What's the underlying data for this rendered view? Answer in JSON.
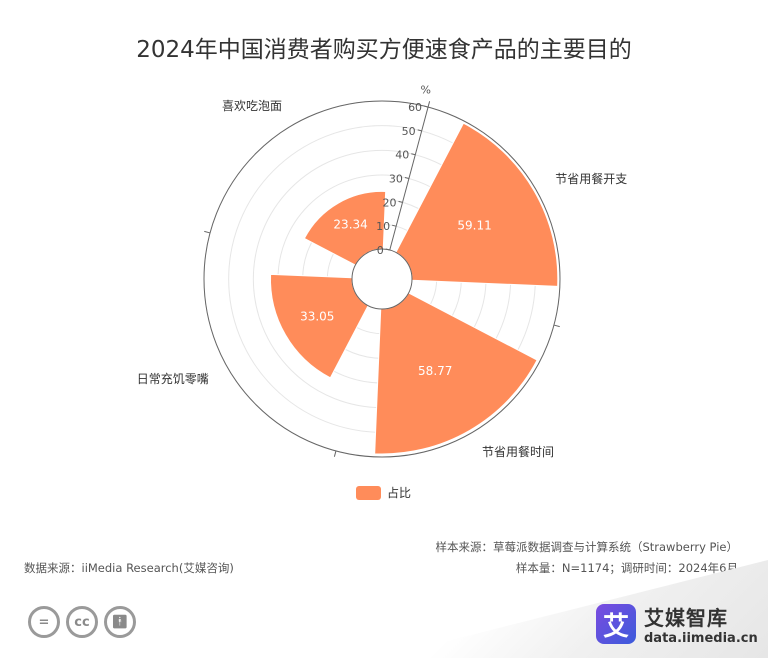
{
  "title": "2024年中国消费者购买方便速食产品的主要目的",
  "legend_label": "占比",
  "unit_label": "%",
  "source": "数据来源：iiMedia Research(艾媒咨询)",
  "sample_source": "样本来源：草莓派数据调查与计算系统（Strawberry Pie）",
  "sample_info": "样本量：N=1174；调研时间：2024年6月",
  "brand": {
    "name": "艾媒智库",
    "url": "data.iimedia.cn",
    "logo_char": "艾"
  },
  "icons": [
    "equals-icon",
    "cc-icon",
    "person-icon"
  ],
  "colors": {
    "bar": "#FF8C5A",
    "axis": "#666666",
    "grid": "#e6e6e6"
  },
  "chart_data": {
    "type": "bar",
    "polar": true,
    "title": "2024年中国消费者购买方便速食产品的主要目的",
    "categories": [
      "节省用餐开支",
      "节省用餐时间",
      "日常充饥零嘴",
      "喜欢吃泡面"
    ],
    "series": [
      {
        "name": "占比",
        "values": [
          59.11,
          58.77,
          33.05,
          23.34
        ]
      }
    ],
    "radial_axis": {
      "min": 0,
      "max": 60,
      "ticks": [
        0,
        10,
        20,
        30,
        40,
        50,
        60
      ],
      "unit": "%"
    },
    "grid": true,
    "legend": "bottom"
  }
}
